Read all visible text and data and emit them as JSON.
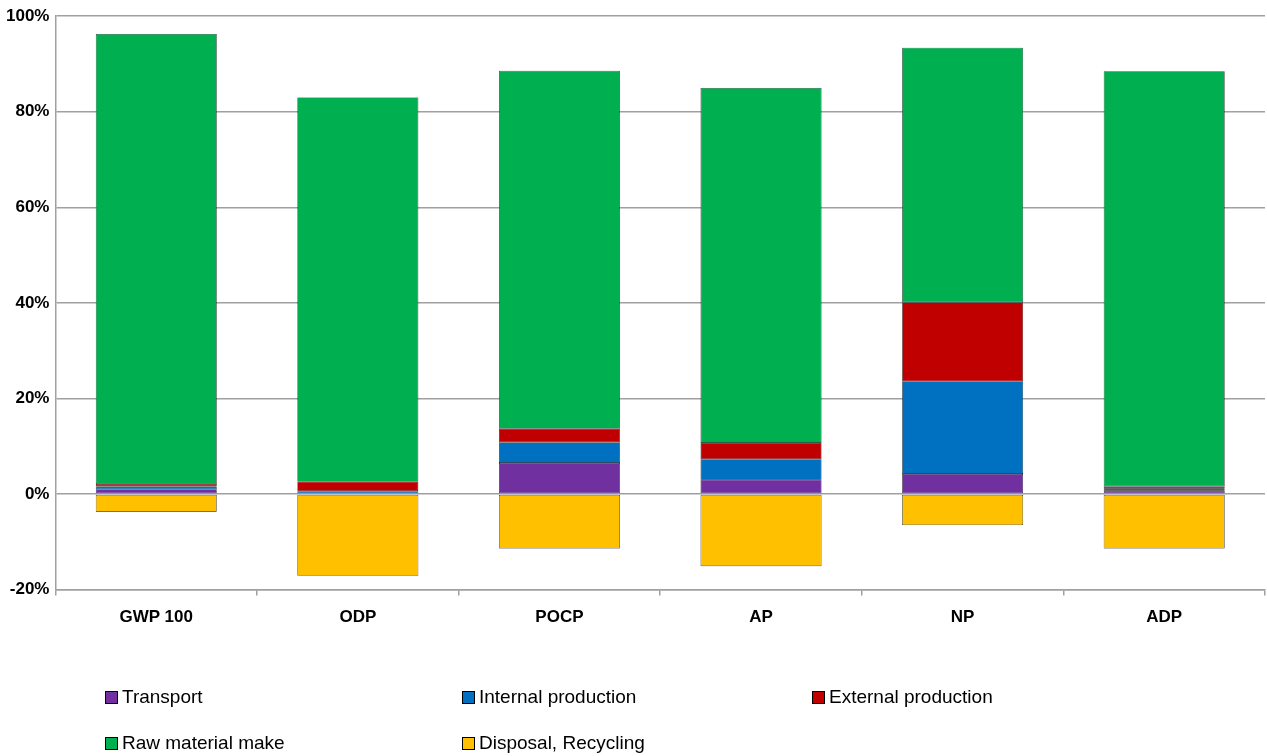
{
  "chart_data": {
    "type": "bar",
    "stacked": true,
    "categories": [
      "GWP 100",
      "ODP",
      "POCP",
      "AP",
      "NP",
      "ADP"
    ],
    "series": [
      {
        "name": "Transport",
        "color": "#7030a0",
        "values": [
          1.0,
          null,
          6.5,
          3.0,
          4.2,
          0.7
        ]
      },
      {
        "name": "Internal production",
        "color": "#0070c0",
        "values": [
          0.6,
          0.6,
          4.3,
          4.3,
          19.4,
          0.5
        ]
      },
      {
        "name": "External production",
        "color": "#c00000",
        "values": [
          0.5,
          2.0,
          2.9,
          3.4,
          16.5,
          0.4
        ]
      },
      {
        "name": "Raw material make",
        "color": "#00b050",
        "values": [
          94.2,
          80.4,
          74.9,
          74.3,
          53.3,
          86.9
        ]
      },
      {
        "name": "Disposal, Recycling",
        "color": "#ffc000",
        "values": [
          -3.7,
          -17.1,
          -11.4,
          -15.1,
          -6.5,
          -11.4
        ]
      }
    ],
    "ylim": [
      -20,
      100
    ],
    "yticks": [
      {
        "value": -20,
        "label": "-20%"
      },
      {
        "value": 0,
        "label": "0%"
      },
      {
        "value": 20,
        "label": "20%"
      },
      {
        "value": 40,
        "label": "40%"
      },
      {
        "value": 60,
        "label": "60%"
      },
      {
        "value": 80,
        "label": "80%"
      },
      {
        "value": 100,
        "label": "100%"
      }
    ],
    "grid": "y",
    "legend": "bottom"
  }
}
